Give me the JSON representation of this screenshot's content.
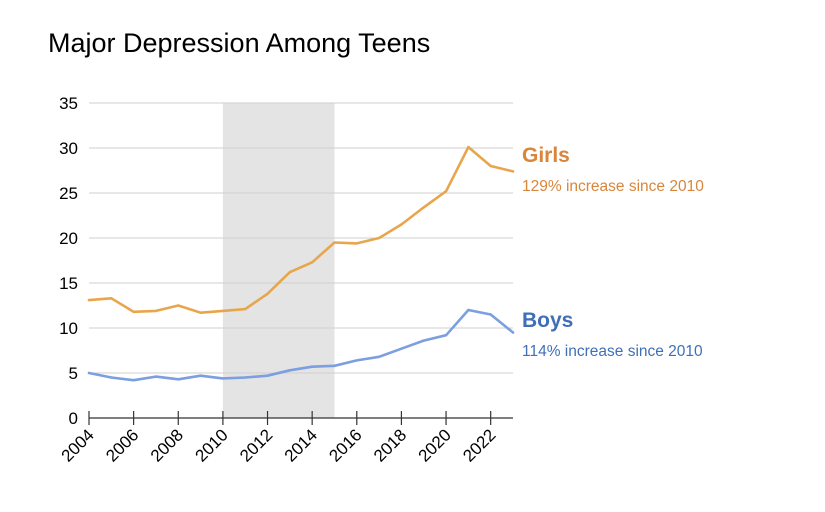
{
  "chart_data": {
    "type": "line",
    "title": "Major Depression Among Teens",
    "xlabel": "",
    "ylabel": "",
    "xlim": [
      2004,
      2023
    ],
    "ylim": [
      0,
      35
    ],
    "y_ticks": [
      0,
      5,
      10,
      15,
      20,
      25,
      30,
      35
    ],
    "x_ticks": [
      2004,
      2006,
      2008,
      2010,
      2012,
      2014,
      2016,
      2018,
      2020,
      2022
    ],
    "grid": true,
    "shaded_region": {
      "from": 2010,
      "to": 2015,
      "color": "#e4e4e4"
    },
    "x": [
      2004,
      2005,
      2006,
      2007,
      2008,
      2009,
      2010,
      2011,
      2012,
      2013,
      2014,
      2015,
      2016,
      2017,
      2018,
      2019,
      2020,
      2021,
      2022,
      2023
    ],
    "series": [
      {
        "name": "Girls",
        "note": "129% increase since 2010",
        "color": "#e8a64c",
        "label_color": "#d9853b",
        "values": [
          13.1,
          13.3,
          11.8,
          11.9,
          12.5,
          11.7,
          11.9,
          12.1,
          13.8,
          16.2,
          17.3,
          19.5,
          19.4,
          20.0,
          21.5,
          23.4,
          25.2,
          30.1,
          28.0,
          27.4
        ]
      },
      {
        "name": "Boys",
        "note": "114% increase since 2010",
        "color": "#7b9fe0",
        "label_color": "#3f6fb8",
        "values": [
          5.0,
          4.5,
          4.2,
          4.6,
          4.3,
          4.7,
          4.4,
          4.5,
          4.7,
          5.3,
          5.7,
          5.8,
          6.4,
          6.8,
          7.7,
          8.6,
          9.2,
          12.0,
          11.5,
          9.5
        ]
      }
    ]
  }
}
